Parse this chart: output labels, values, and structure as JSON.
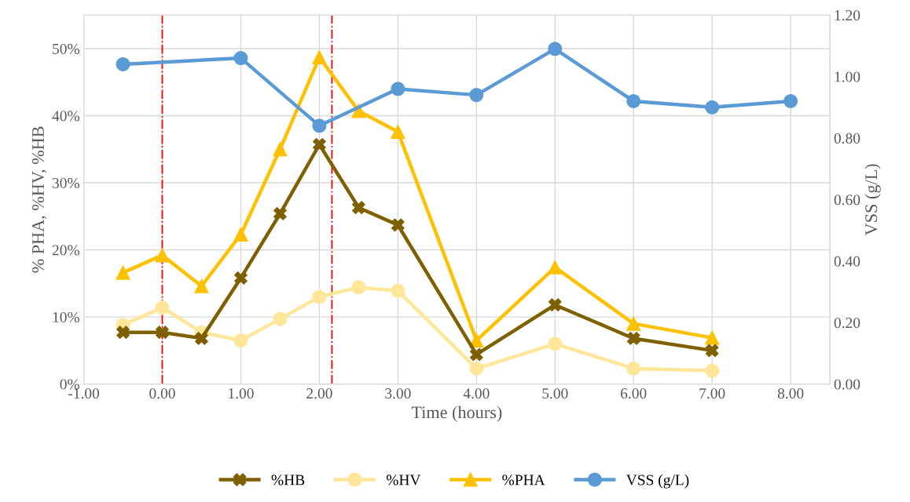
{
  "chart_data": {
    "type": "line",
    "xlabel": "Time (hours)",
    "ylabel": "% PHA, %HV, %HB",
    "y2label": "VSS (g/L)",
    "x": [
      -0.5,
      0,
      0.5,
      1,
      1.5,
      2,
      2.5,
      3,
      4,
      5,
      6,
      7
    ],
    "series": [
      {
        "name": "%HB",
        "color": "#7f6000",
        "marker": "cross",
        "values": [
          7.7,
          7.7,
          6.8,
          15.8,
          25.4,
          35.7,
          26.3,
          23.7,
          4.4,
          11.8,
          6.8,
          5.0
        ]
      },
      {
        "name": "%HV",
        "color": "#ffe699",
        "marker": "circle",
        "values": [
          8.8,
          11.4,
          7.7,
          6.5,
          9.7,
          13.0,
          14.4,
          13.9,
          2.3,
          6.0,
          2.3,
          2.0
        ]
      },
      {
        "name": "%PHA",
        "color": "#ffc000",
        "marker": "triangle",
        "values": [
          16.6,
          19.2,
          14.6,
          22.3,
          35.0,
          48.7,
          40.7,
          37.6,
          6.5,
          17.4,
          9.0,
          6.9
        ]
      },
      {
        "name": "VSS (g/L)",
        "color": "#5b9bd5",
        "marker": "circle",
        "axis": "y2",
        "x": [
          -0.5,
          1,
          2,
          3,
          4,
          5,
          6,
          7,
          8
        ],
        "values": [
          1.04,
          1.06,
          0.84,
          0.96,
          0.94,
          1.09,
          0.92,
          0.9,
          0.92
        ]
      }
    ],
    "xlim": [
      -1,
      8.5
    ],
    "xticks": [
      {
        "value": -1,
        "label": "-1.00"
      },
      {
        "value": 0,
        "label": "0.00"
      },
      {
        "value": 1,
        "label": "1.00"
      },
      {
        "value": 2,
        "label": "2.00"
      },
      {
        "value": 3,
        "label": "3.00"
      },
      {
        "value": 4,
        "label": "4.00"
      },
      {
        "value": 5,
        "label": "5.00"
      },
      {
        "value": 6,
        "label": "6.00"
      },
      {
        "value": 7,
        "label": "7.00"
      },
      {
        "value": 8,
        "label": "8.00"
      }
    ],
    "ylim": [
      0,
      55
    ],
    "yticks": [
      {
        "value": 0,
        "label": "0%"
      },
      {
        "value": 10,
        "label": "10%"
      },
      {
        "value": 20,
        "label": "20%"
      },
      {
        "value": 30,
        "label": "30%"
      },
      {
        "value": 40,
        "label": "40%"
      },
      {
        "value": 50,
        "label": "50%"
      }
    ],
    "y2lim": [
      0,
      1.2
    ],
    "y2ticks": [
      {
        "value": 0,
        "label": "0.00"
      },
      {
        "value": 0.2,
        "label": "0.20"
      },
      {
        "value": 0.4,
        "label": "0.40"
      },
      {
        "value": 0.6,
        "label": "0.60"
      },
      {
        "value": 0.8,
        "label": "0.80"
      },
      {
        "value": 1.0,
        "label": "1.00"
      },
      {
        "value": 1.2,
        "label": "1.20"
      }
    ],
    "ref_lines": [
      {
        "axis": "x",
        "value": 0,
        "color": "#ff0000",
        "line_style": "dashdot"
      },
      {
        "axis": "x",
        "value": 2.16,
        "color": "#ff0000",
        "line_style": "dashdot"
      }
    ],
    "grid": true,
    "legend": "bottom",
    "line_style": "solid"
  }
}
